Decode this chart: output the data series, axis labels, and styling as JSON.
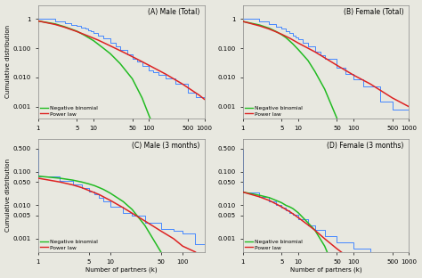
{
  "panels": [
    {
      "label": "(A) Male (Total)",
      "xlim": [
        1,
        1000
      ],
      "ylim": [
        0.0004,
        3
      ],
      "yticks": [
        0.001,
        0.01,
        0.1,
        1
      ],
      "yticklabels": [
        "0.001",
        "0.010",
        "0.100",
        "1"
      ],
      "xticks": [
        1,
        5,
        10,
        50,
        100,
        500,
        1000
      ],
      "xticklabels": [
        "1",
        "5",
        "10",
        "50",
        "100",
        "500",
        "1000"
      ],
      "nb_x": [
        1,
        2,
        3,
        5,
        7,
        10,
        15,
        20,
        30,
        50,
        75,
        100,
        150,
        250,
        400
      ],
      "nb_y": [
        0.85,
        0.68,
        0.54,
        0.38,
        0.27,
        0.18,
        0.1,
        0.065,
        0.03,
        0.009,
        0.002,
        0.0005,
        8e-05,
        3e-06,
        1e-07
      ],
      "pw_x": [
        1,
        2,
        3,
        5,
        8,
        12,
        20,
        35,
        60,
        100,
        200,
        400,
        800,
        1000
      ],
      "pw_y": [
        0.85,
        0.65,
        0.52,
        0.37,
        0.26,
        0.19,
        0.12,
        0.072,
        0.043,
        0.026,
        0.013,
        0.006,
        0.0025,
        0.0018
      ],
      "emp_x": [
        1,
        2,
        3,
        4,
        5,
        6,
        7,
        8,
        9,
        10,
        12,
        15,
        20,
        25,
        30,
        40,
        50,
        60,
        75,
        100,
        120,
        150,
        200,
        300,
        500,
        700,
        1000
      ],
      "emp_y": [
        1.0,
        0.82,
        0.72,
        0.64,
        0.57,
        0.51,
        0.46,
        0.41,
        0.37,
        0.33,
        0.27,
        0.21,
        0.155,
        0.115,
        0.088,
        0.062,
        0.044,
        0.034,
        0.025,
        0.018,
        0.015,
        0.012,
        0.009,
        0.006,
        0.003,
        0.0022,
        0.0016
      ]
    },
    {
      "label": "(B) Female (Total)",
      "xlim": [
        1,
        1000
      ],
      "ylim": [
        0.0004,
        3
      ],
      "yticks": [
        0.001,
        0.01,
        0.1,
        1
      ],
      "yticklabels": [
        "0.001",
        "0.010",
        "0.100",
        "1"
      ],
      "xticks": [
        1,
        5,
        10,
        50,
        100,
        500,
        1000
      ],
      "xticklabels": [
        "1",
        "5",
        "10",
        "50",
        "100",
        "500",
        "1000"
      ],
      "nb_x": [
        1,
        2,
        3,
        4,
        5,
        6,
        8,
        10,
        15,
        20,
        30,
        50,
        75
      ],
      "nb_y": [
        0.82,
        0.62,
        0.48,
        0.37,
        0.29,
        0.23,
        0.14,
        0.09,
        0.038,
        0.016,
        0.004,
        0.0004,
        2e-05
      ],
      "pw_x": [
        1,
        2,
        3,
        4,
        5,
        7,
        10,
        15,
        20,
        30,
        50,
        100,
        200,
        500,
        1000
      ],
      "pw_y": [
        0.82,
        0.58,
        0.45,
        0.36,
        0.3,
        0.22,
        0.15,
        0.1,
        0.075,
        0.047,
        0.026,
        0.012,
        0.006,
        0.002,
        0.001
      ],
      "emp_x": [
        1,
        2,
        3,
        4,
        5,
        6,
        7,
        8,
        9,
        10,
        12,
        15,
        20,
        25,
        30,
        50,
        70,
        100,
        150,
        300,
        500,
        1000
      ],
      "emp_y": [
        1.0,
        0.82,
        0.68,
        0.56,
        0.46,
        0.38,
        0.32,
        0.27,
        0.23,
        0.2,
        0.155,
        0.115,
        0.078,
        0.058,
        0.044,
        0.022,
        0.013,
        0.0085,
        0.005,
        0.0015,
        0.0008,
        0.0004
      ]
    },
    {
      "label": "(C) Male (3 months)",
      "xlim": [
        1,
        200
      ],
      "ylim": [
        0.0004,
        1
      ],
      "yticks": [
        0.001,
        0.005,
        0.01,
        0.05,
        0.1,
        0.5
      ],
      "yticklabels": [
        "0.001",
        "0.005",
        "0.010",
        "0.050",
        "0.100",
        "0.500"
      ],
      "xticks": [
        1,
        5,
        10,
        50,
        100
      ],
      "xticklabels": [
        "1",
        "5",
        "10",
        "50",
        "100"
      ],
      "nb_x": [
        1,
        2,
        3,
        4,
        5,
        6,
        7,
        8,
        10,
        15,
        20,
        30,
        50,
        75,
        100
      ],
      "nb_y": [
        0.075,
        0.065,
        0.057,
        0.05,
        0.044,
        0.039,
        0.034,
        0.03,
        0.023,
        0.013,
        0.0075,
        0.0025,
        0.0004,
        4e-05,
        3e-06
      ],
      "pw_x": [
        1,
        2,
        3,
        4,
        5,
        6,
        7,
        8,
        10,
        15,
        20,
        30,
        50,
        75,
        100,
        150
      ],
      "pw_y": [
        0.065,
        0.05,
        0.041,
        0.034,
        0.028,
        0.024,
        0.021,
        0.018,
        0.014,
        0.0085,
        0.0058,
        0.0034,
        0.0017,
        0.001,
        0.0006,
        0.0004
      ],
      "emp_x": [
        1,
        1,
        2,
        3,
        4,
        5,
        6,
        7,
        8,
        10,
        15,
        20,
        30,
        50,
        75,
        100,
        150,
        200
      ],
      "emp_y": [
        0.47,
        0.075,
        0.055,
        0.043,
        0.033,
        0.026,
        0.021,
        0.017,
        0.013,
        0.009,
        0.006,
        0.0048,
        0.003,
        0.002,
        0.0017,
        0.0014,
        0.0007,
        0.0004
      ]
    },
    {
      "label": "(D) Female (3 months)",
      "xlim": [
        1,
        1000
      ],
      "ylim": [
        0.0004,
        1
      ],
      "yticks": [
        0.001,
        0.005,
        0.01,
        0.05,
        0.1,
        0.5
      ],
      "yticklabels": [
        "0.001",
        "0.005",
        "0.010",
        "0.050",
        "0.100",
        "0.500"
      ],
      "xticks": [
        1,
        5,
        10,
        50,
        100,
        500,
        1000
      ],
      "xticklabels": [
        "1",
        "5",
        "10",
        "50",
        "100",
        "500",
        "1000"
      ],
      "nb_x": [
        1,
        2,
        3,
        4,
        5,
        6,
        7,
        8,
        10,
        15,
        20,
        30,
        50,
        75,
        100,
        150
      ],
      "nb_y": [
        0.025,
        0.02,
        0.017,
        0.014,
        0.012,
        0.01,
        0.009,
        0.008,
        0.006,
        0.003,
        0.0018,
        0.0006,
        8e-05,
        6e-06,
        4e-07,
        2e-08
      ],
      "pw_x": [
        1,
        2,
        3,
        4,
        5,
        6,
        7,
        8,
        10,
        15,
        20,
        30,
        50,
        75,
        100,
        200,
        500,
        1000
      ],
      "pw_y": [
        0.025,
        0.018,
        0.014,
        0.011,
        0.009,
        0.0075,
        0.0065,
        0.0056,
        0.0043,
        0.0026,
        0.0018,
        0.001,
        0.0005,
        0.0003,
        0.0002,
        7e-05,
        2e-05,
        7e-06
      ],
      "emp_x": [
        1,
        1,
        2,
        3,
        4,
        5,
        6,
        7,
        8,
        10,
        15,
        20,
        30,
        50,
        100,
        200,
        500,
        1000
      ],
      "emp_y": [
        0.47,
        0.025,
        0.018,
        0.013,
        0.01,
        0.0085,
        0.007,
        0.006,
        0.0052,
        0.0038,
        0.0025,
        0.0018,
        0.0012,
        0.0008,
        0.0005,
        0.00035,
        0.0003,
        0.00028
      ]
    }
  ],
  "nb_color": "#22bb22",
  "pw_color": "#dd2222",
  "emp_color": "#4488ff",
  "bg_color": "#e8e8e0",
  "xlabel": "Number of partners (k)",
  "ylabel": "Cumulative distribution",
  "legend_labels": [
    "Negative binomial",
    "Power law"
  ]
}
